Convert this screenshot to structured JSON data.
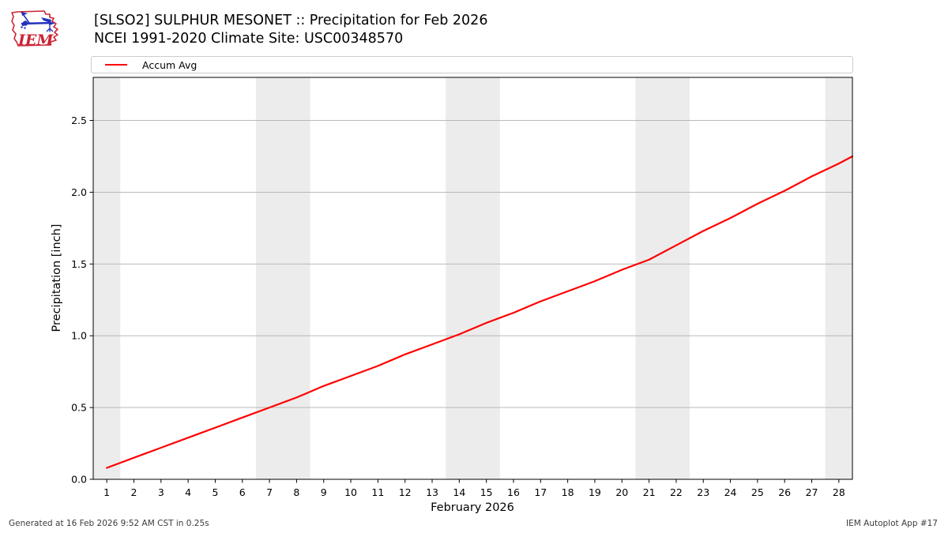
{
  "page": {
    "footer_left": "Generated at 16 Feb 2026 9:52 AM CST in 0.25s",
    "footer_right": "IEM Autoplot App #17"
  },
  "header": {
    "title": "[SLSO2] SULPHUR MESONET :: Precipitation for Feb 2026",
    "subtitle": "NCEI 1991-2020 Climate Site: USC00348570",
    "logo_text": "IEM"
  },
  "legend": {
    "entries": [
      {
        "label": "Accum Avg",
        "color": "#ff0000"
      }
    ]
  },
  "colors": {
    "grid": "#b0b0b0",
    "spine": "#000000",
    "weekend_band": "#ececec",
    "line_red": "#ff0000",
    "logo_red": "#cc2233",
    "logo_blue": "#2233bb"
  },
  "chart_data": {
    "type": "line",
    "title": "[SLSO2] SULPHUR MESONET :: Precipitation for Feb 2026",
    "subtitle": "NCEI 1991-2020 Climate Site: USC00348570",
    "xlabel": "February 2026",
    "ylabel": "Precipitation [inch]",
    "xlim": [
      0.5,
      28.5
    ],
    "ylim": [
      0,
      2.8
    ],
    "grid": "horizontal",
    "legend_position": "top",
    "x_ticks": [
      1,
      2,
      3,
      4,
      5,
      6,
      7,
      8,
      9,
      10,
      11,
      12,
      13,
      14,
      15,
      16,
      17,
      18,
      19,
      20,
      21,
      22,
      23,
      24,
      25,
      26,
      27,
      28
    ],
    "y_ticks": [
      0,
      0.5,
      1.0,
      1.5,
      2.0,
      2.5
    ],
    "y_tick_labels": [
      "0.0",
      "0.5",
      "1.0",
      "1.5",
      "2.0",
      "2.5"
    ],
    "weekend_shading": {
      "color": "#ececec",
      "bands": [
        [
          0.5,
          1.5
        ],
        [
          6.5,
          8.5
        ],
        [
          13.5,
          15.5
        ],
        [
          20.5,
          22.5
        ],
        [
          27.5,
          28.5
        ]
      ]
    },
    "series": [
      {
        "name": "Accum Avg",
        "color": "#ff0000",
        "x": [
          1,
          2,
          3,
          4,
          5,
          6,
          7,
          8,
          9,
          10,
          11,
          12,
          13,
          14,
          15,
          16,
          17,
          18,
          19,
          20,
          21,
          22,
          23,
          24,
          25,
          26,
          27,
          28,
          28.5
        ],
        "values": [
          0.08,
          0.15,
          0.22,
          0.29,
          0.36,
          0.43,
          0.5,
          0.57,
          0.65,
          0.72,
          0.79,
          0.87,
          0.94,
          1.01,
          1.09,
          1.16,
          1.24,
          1.31,
          1.38,
          1.46,
          1.53,
          1.63,
          1.73,
          1.82,
          1.92,
          2.01,
          2.11,
          2.2,
          2.25
        ]
      }
    ]
  }
}
